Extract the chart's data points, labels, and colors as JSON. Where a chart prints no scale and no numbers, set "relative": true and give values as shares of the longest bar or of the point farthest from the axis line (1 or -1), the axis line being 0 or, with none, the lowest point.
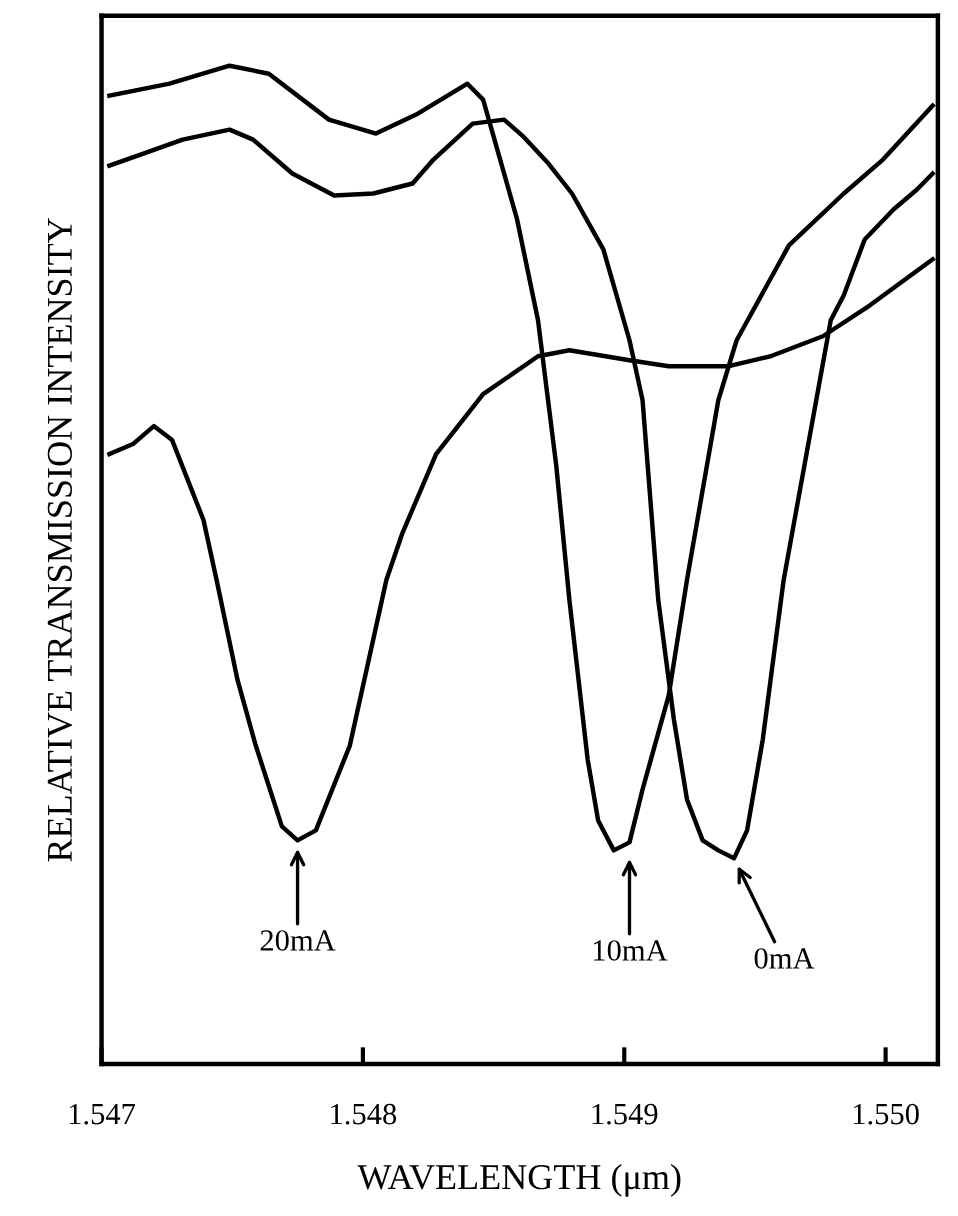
{
  "chart_data": {
    "type": "line",
    "xlabel": "WAVELENGTH (μm)",
    "ylabel": "RELATIVE TRANSMISSION INTENSITY",
    "relative": true,
    "xlim": [
      1.547,
      1.5502
    ],
    "xticks": [
      {
        "value": 1.547,
        "label": "1.547"
      },
      {
        "value": 1.548,
        "label": "1.548"
      },
      {
        "value": 1.549,
        "label": "1.549"
      },
      {
        "value": 1.55,
        "label": "1.550"
      }
    ],
    "grid": false,
    "legend": false,
    "marker": "none",
    "line_style": "solid",
    "series": [
      {
        "color": "#000000",
        "x": [
          1.54703,
          1.54726,
          1.54749,
          1.54764,
          1.54787,
          1.54805,
          1.54821,
          1.5484,
          1.54846,
          1.54851,
          1.54859,
          1.54867,
          1.54874,
          1.54879,
          1.54886,
          1.5489,
          1.54896,
          1.54902,
          1.54907,
          1.54917,
          1.54924,
          1.54936,
          1.54943,
          1.54963,
          1.54984,
          1.54999,
          1.55018
        ],
        "values": [
          0.97,
          0.982,
          1.0,
          0.992,
          0.946,
          0.932,
          0.952,
          0.982,
          0.966,
          0.92,
          0.846,
          0.745,
          0.599,
          0.465,
          0.305,
          0.244,
          0.214,
          0.222,
          0.275,
          0.369,
          0.485,
          0.665,
          0.725,
          0.82,
          0.872,
          0.906,
          0.96
        ]
      },
      {
        "color": "#000000",
        "x": [
          1.54703,
          1.54716,
          1.54731,
          1.54749,
          1.54758,
          1.54773,
          1.54789,
          1.54804,
          1.54819,
          1.54827,
          1.54842,
          1.54854,
          1.54861,
          1.54871,
          1.5488,
          1.54892,
          1.54902,
          1.54907,
          1.54913,
          1.54919,
          1.54924,
          1.5493,
          1.54936,
          1.54942,
          1.54947,
          1.54953,
          1.54961,
          1.54979,
          1.54984,
          1.54992,
          1.55003,
          1.55012,
          1.55018
        ],
        "values": [
          0.9,
          0.912,
          0.926,
          0.936,
          0.926,
          0.892,
          0.87,
          0.872,
          0.882,
          0.906,
          0.942,
          0.946,
          0.93,
          0.902,
          0.872,
          0.816,
          0.725,
          0.665,
          0.465,
          0.345,
          0.265,
          0.224,
          0.214,
          0.206,
          0.234,
          0.325,
          0.485,
          0.745,
          0.77,
          0.826,
          0.856,
          0.876,
          0.892
        ]
      },
      {
        "color": "#000000",
        "x": [
          1.54703,
          1.54712,
          1.5472,
          1.54727,
          1.54739,
          1.54744,
          1.54752,
          1.54759,
          1.54769,
          1.54775,
          1.54782,
          1.54795,
          1.54809,
          1.54815,
          1.54828,
          1.54846,
          1.54867,
          1.54879,
          1.54902,
          1.54917,
          1.5494,
          1.54956,
          1.54976,
          1.54994,
          1.55018
        ],
        "values": [
          0.611,
          0.621,
          0.639,
          0.625,
          0.545,
          0.485,
          0.385,
          0.319,
          0.238,
          0.224,
          0.234,
          0.319,
          0.485,
          0.531,
          0.611,
          0.671,
          0.709,
          0.715,
          0.705,
          0.699,
          0.699,
          0.709,
          0.729,
          0.76,
          0.806
        ]
      }
    ],
    "annotations": [
      {
        "text": "20mA",
        "x": 1.54775,
        "y": 0.224
      },
      {
        "text": "10mA",
        "x": 1.54902,
        "y": 0.214
      },
      {
        "text": "0mA",
        "x": 1.54942,
        "y": 0.206
      }
    ]
  }
}
